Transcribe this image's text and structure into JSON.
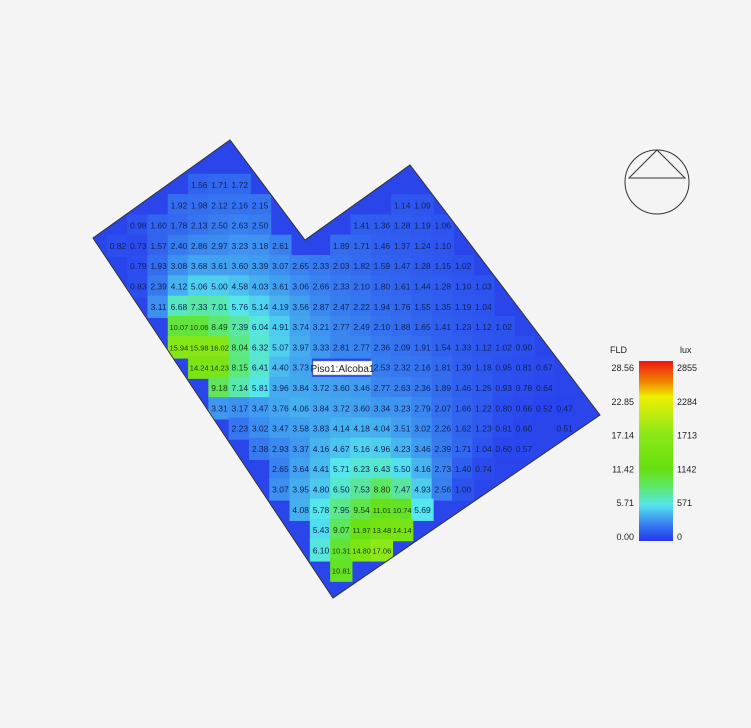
{
  "chart_data": {
    "type": "heatmap",
    "zone_label": "Piso1:Alcoba1",
    "legend": {
      "left_title": "FLD",
      "right_title": "lux",
      "left_ticks": [
        "28.56",
        "22.85",
        "17.14",
        "11.42",
        "5.71",
        "0.00"
      ],
      "right_ticks": [
        "2855",
        "2284",
        "1713",
        "1142",
        "571",
        "0"
      ],
      "range": [
        0,
        28.56
      ],
      "colors": [
        "#2636ee",
        "#3a86f0",
        "#55e6ee",
        "#5ee86a",
        "#66e010",
        "#eef000",
        "#f08a00",
        "#f01414"
      ]
    },
    "compass_icon": "north-arrow-triangle-in-circle",
    "segments": [
      {
        "row": 0,
        "col": 4,
        "values": [
          1.56,
          1.71,
          1.72
        ]
      },
      {
        "row": 1,
        "col": 3,
        "values": [
          1.92,
          1.98,
          2.12,
          2.16,
          2.15
        ]
      },
      {
        "row": 1,
        "col": 14,
        "values": [
          1.14,
          1.09
        ]
      },
      {
        "row": 2,
        "col": 1,
        "values": [
          0.98,
          1.6,
          1.78,
          2.13,
          2.5,
          2.63,
          2.5
        ]
      },
      {
        "row": 2,
        "col": 12,
        "values": [
          1.41,
          1.36,
          1.28,
          1.19,
          1.06
        ]
      },
      {
        "row": 3,
        "col": 0,
        "values": [
          0.82,
          0.73,
          1.57,
          2.4,
          2.86,
          2.97,
          3.23,
          3.18,
          2.61
        ]
      },
      {
        "row": 3,
        "col": 11,
        "values": [
          1.89,
          1.71,
          1.46,
          1.37,
          1.24,
          1.1
        ]
      },
      {
        "row": 4,
        "col": 1,
        "values": [
          0.79,
          1.93,
          3.08,
          3.68,
          3.61,
          3.6,
          3.39,
          3.07,
          2.65,
          2.33,
          2.03,
          1.82,
          1.59,
          1.47,
          1.28,
          1.15,
          1.02
        ]
      },
      {
        "row": 5,
        "col": 1,
        "values": [
          0.83,
          2.39,
          4.12,
          5.06,
          5.0,
          4.58,
          4.03,
          3.61,
          3.06,
          2.66,
          2.33,
          2.1,
          1.8,
          1.61,
          1.44,
          1.28,
          1.1,
          1.03
        ]
      },
      {
        "row": 6,
        "col": 2,
        "values": [
          3.11,
          6.68,
          7.33,
          7.01,
          5.76,
          5.14,
          4.19,
          3.56,
          2.87,
          2.47,
          2.22,
          1.94,
          1.76,
          1.55,
          1.35,
          1.19,
          1.04
        ]
      },
      {
        "row": 7,
        "col": 3,
        "values": [
          10.07,
          10.06,
          8.49,
          7.39,
          6.04,
          4.91,
          3.74,
          3.21,
          2.77,
          2.49,
          2.1,
          1.88,
          1.65,
          1.41,
          1.23,
          1.12,
          1.02
        ]
      },
      {
        "row": 8,
        "col": 3,
        "values": [
          15.94,
          15.98,
          16.02,
          8.04,
          6.32,
          5.07,
          3.97,
          3.33,
          2.81,
          2.77,
          2.36,
          2.09,
          1.91,
          1.54,
          1.33,
          1.12,
          1.02,
          0.9
        ]
      },
      {
        "row": 9,
        "col": 4,
        "values": [
          14.24,
          14.23,
          8.15,
          6.41,
          4.4,
          3.73
        ]
      },
      {
        "row": 9,
        "col": 13,
        "values": [
          2.53,
          2.32,
          2.16,
          1.81,
          1.39,
          1.18,
          0.95,
          0.81,
          0.67
        ]
      },
      {
        "row": 10,
        "col": 5,
        "values": [
          9.18,
          7.14,
          5.81,
          3.96,
          3.84,
          3.72,
          3.6,
          3.46,
          2.77,
          2.63,
          2.36,
          1.89,
          1.46,
          1.25,
          0.93,
          0.78,
          0.64
        ]
      },
      {
        "row": 11,
        "col": 5,
        "values": [
          3.31,
          3.17,
          3.47,
          3.76,
          4.06,
          3.84,
          3.72,
          3.6,
          3.34,
          3.23,
          2.79,
          2.07,
          1.66,
          1.22,
          0.8,
          0.66,
          0.52,
          0.47
        ]
      },
      {
        "row": 12,
        "col": 6,
        "values": [
          2.23,
          3.02,
          3.47,
          3.58,
          3.83,
          4.14,
          4.18,
          4.04,
          3.51,
          3.02,
          2.26,
          1.62,
          1.23,
          0.81,
          0.6,
          null,
          0.51
        ]
      },
      {
        "row": 13,
        "col": 7,
        "values": [
          2.38,
          2.93,
          3.37,
          4.16,
          4.67,
          5.16,
          4.96,
          4.23,
          3.46,
          2.39,
          1.71,
          1.04,
          0.6,
          0.57
        ]
      },
      {
        "row": 14,
        "col": 8,
        "values": [
          2.65,
          3.64,
          4.41,
          5.71,
          6.23,
          6.43,
          5.5,
          4.16,
          2.73,
          1.4,
          0.74
        ]
      },
      {
        "row": 15,
        "col": 8,
        "values": [
          3.07,
          3.95,
          4.8,
          6.5,
          7.53,
          8.8,
          7.47,
          4.93,
          2.56,
          1.0
        ]
      },
      {
        "row": 16,
        "col": 9,
        "values": [
          4.08,
          5.78,
          7.95,
          9.54,
          11.01,
          10.74,
          5.69
        ]
      },
      {
        "row": 17,
        "col": 10,
        "values": [
          5.43,
          9.07,
          11.97,
          13.48,
          14.14
        ]
      },
      {
        "row": 18,
        "col": 10,
        "values": [
          6.1,
          10.31,
          14.8,
          17.06
        ]
      },
      {
        "row": 19,
        "col": 11,
        "values": [
          10.81
        ]
      }
    ]
  }
}
